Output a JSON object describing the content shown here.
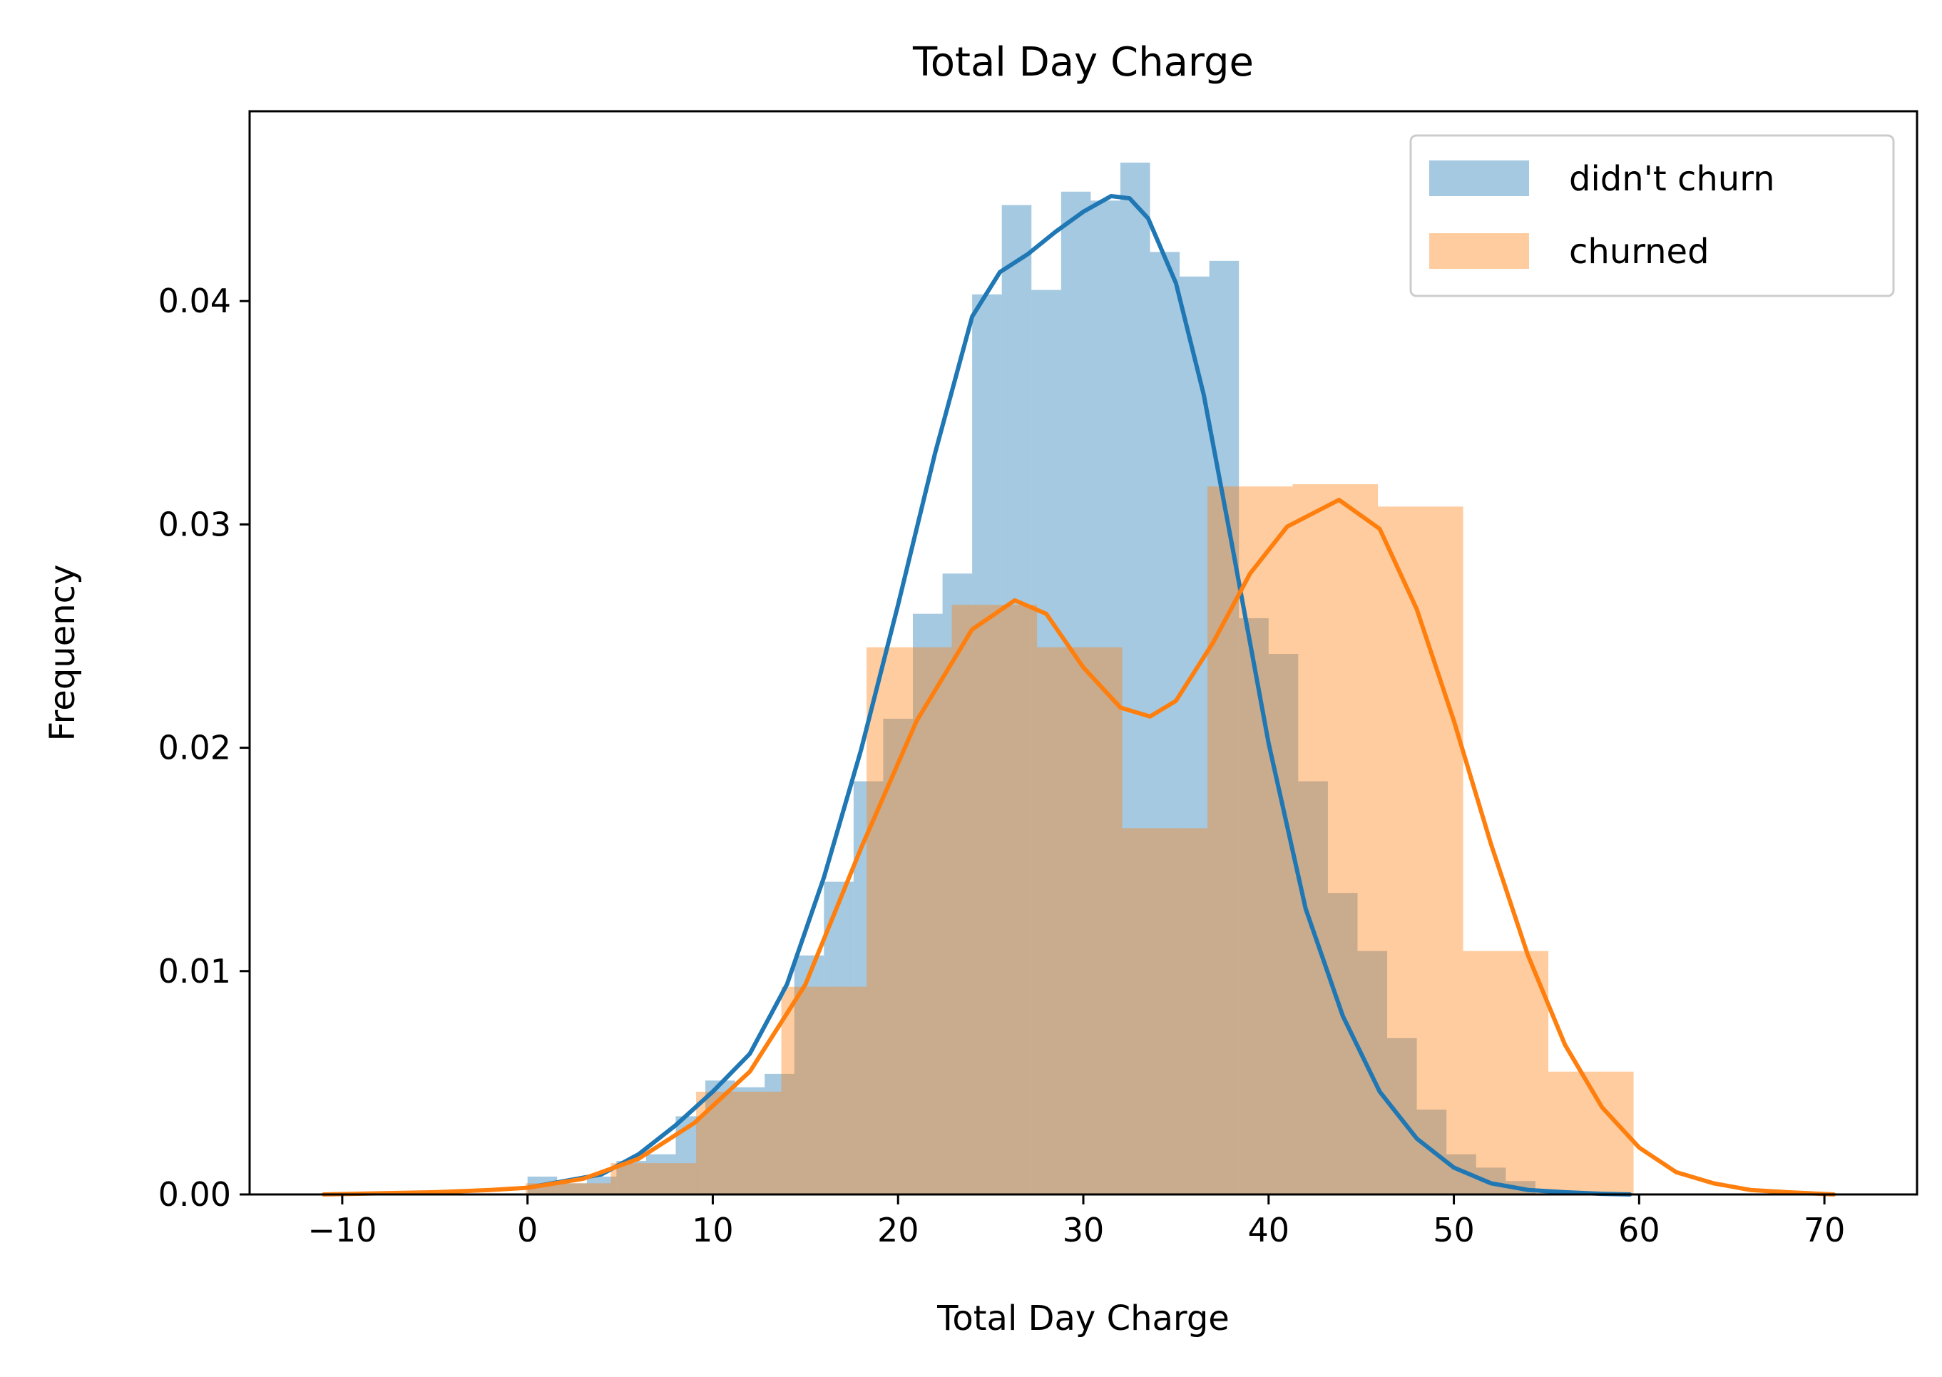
{
  "chart_data": {
    "type": "histogram",
    "title": "Total Day Charge",
    "xlabel": "Total Day Charge",
    "ylabel": "Frequency",
    "xlim": [
      -15,
      75
    ],
    "ylim": [
      0,
      0.0485
    ],
    "xticks": [
      -10,
      0,
      10,
      20,
      30,
      40,
      50,
      60,
      70
    ],
    "xtick_labels": [
      "−10",
      "0",
      "10",
      "20",
      "30",
      "40",
      "50",
      "60",
      "70"
    ],
    "yticks": [
      0.0,
      0.01,
      0.02,
      0.03,
      0.04
    ],
    "ytick_labels": [
      "0.00",
      "0.01",
      "0.02",
      "0.03",
      "0.04"
    ],
    "grid": false,
    "legend_position": "top-right",
    "series": [
      {
        "name": "didn't churn",
        "color": "#1f77b4",
        "bar_opacity": 0.4,
        "bin_edges": [
          0.0,
          1.6,
          3.2,
          4.8,
          6.4,
          8.0,
          9.6,
          11.2,
          12.8,
          14.4,
          16.0,
          17.6,
          19.2,
          20.8,
          22.4,
          24.0,
          25.6,
          27.2,
          28.8,
          30.4,
          32.0,
          33.6,
          35.2,
          36.8,
          38.4,
          40.0,
          41.6,
          43.2,
          44.8,
          46.4,
          48.0,
          49.6,
          51.2,
          52.8,
          54.4
        ],
        "densities": [
          0.0008,
          0.0005,
          0.0008,
          0.0015,
          0.0018,
          0.0035,
          0.0051,
          0.0048,
          0.0054,
          0.0107,
          0.014,
          0.0185,
          0.0213,
          0.026,
          0.0278,
          0.0403,
          0.0443,
          0.0405,
          0.0449,
          0.0445,
          0.0462,
          0.0422,
          0.0411,
          0.0418,
          0.0258,
          0.0242,
          0.0185,
          0.0135,
          0.0109,
          0.007,
          0.0038,
          0.0018,
          0.0012,
          0.0006
        ],
        "kde_x": [
          0,
          2,
          4,
          6,
          8,
          10,
          12,
          14,
          16,
          18,
          20,
          22,
          24,
          25.5,
          27,
          28.5,
          30,
          31.5,
          32.5,
          33.5,
          35,
          36.5,
          38,
          40,
          42,
          44,
          46,
          48,
          50,
          52,
          54,
          56,
          58,
          59.5
        ],
        "kde_y": [
          0.0003,
          0.0006,
          0.0009,
          0.0018,
          0.0031,
          0.0046,
          0.0063,
          0.0094,
          0.0142,
          0.0199,
          0.0264,
          0.0332,
          0.0393,
          0.0413,
          0.0421,
          0.0431,
          0.044,
          0.0447,
          0.0446,
          0.0437,
          0.0408,
          0.0358,
          0.0292,
          0.0202,
          0.0128,
          0.008,
          0.0046,
          0.0025,
          0.0012,
          0.0005,
          0.0002,
          0.0001,
          3e-05,
          0.0
        ]
      },
      {
        "name": "churned",
        "color": "#ff7f0e",
        "bar_opacity": 0.4,
        "bin_edges": [
          -0.1,
          4.5,
          9.1,
          13.7,
          18.3,
          22.9,
          27.5,
          32.1,
          36.7,
          41.3,
          45.9,
          50.5,
          55.1,
          59.7
        ],
        "densities": [
          0.0005,
          0.0014,
          0.0046,
          0.0093,
          0.0245,
          0.0264,
          0.0245,
          0.0164,
          0.0317,
          0.0318,
          0.0308,
          0.0109,
          0.0055
        ],
        "kde_x": [
          -11,
          -8,
          -5,
          -2,
          0,
          3,
          6,
          9,
          12,
          15,
          18,
          21,
          24,
          26.3,
          28,
          30,
          32,
          33.6,
          35,
          37,
          39,
          41,
          43.8,
          46,
          48,
          50,
          52,
          54,
          56,
          58,
          60,
          62,
          64,
          66,
          68,
          70.5
        ],
        "kde_y": [
          0.0,
          5e-05,
          0.0001,
          0.0002,
          0.0003,
          0.0007,
          0.0016,
          0.0032,
          0.0055,
          0.0094,
          0.0155,
          0.0212,
          0.0253,
          0.0266,
          0.026,
          0.0236,
          0.0218,
          0.0214,
          0.0221,
          0.0247,
          0.0278,
          0.0299,
          0.0311,
          0.0298,
          0.0262,
          0.0212,
          0.0157,
          0.0107,
          0.0067,
          0.0039,
          0.0021,
          0.001,
          0.0005,
          0.0002,
          0.0001,
          0.0
        ]
      }
    ]
  }
}
